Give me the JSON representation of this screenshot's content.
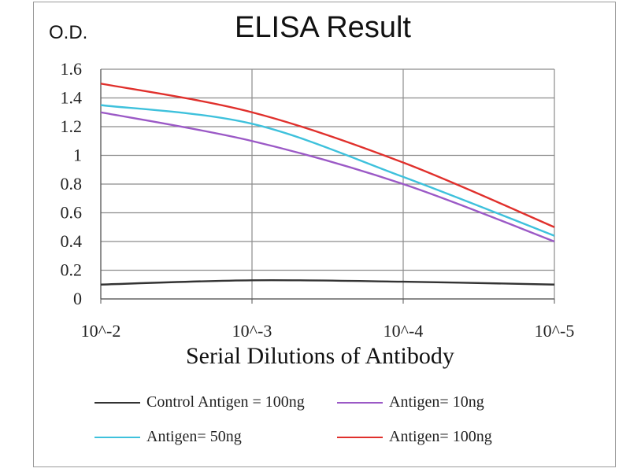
{
  "chart_data": {
    "type": "line",
    "title": "ELISA Result",
    "ylabel": "O.D.",
    "xlabel": "Serial Dilutions  of Antibody",
    "categories": [
      "10^-2",
      "10^-3",
      "10^-4",
      "10^-5"
    ],
    "ylim": [
      0,
      1.6
    ],
    "yticks": [
      "0",
      "0.2",
      "0.4",
      "0.6",
      "0.8",
      "1",
      "1.2",
      "1.4",
      "1.6"
    ],
    "grid": true,
    "legend_position": "bottom",
    "series": [
      {
        "name": "Control Antigen = 100ng",
        "color": "#333333",
        "values": [
          0.1,
          0.13,
          0.12,
          0.1
        ]
      },
      {
        "name": "Antigen= 10ng",
        "color": "#9b59c6",
        "values": [
          1.3,
          1.1,
          0.8,
          0.4
        ]
      },
      {
        "name": "Antigen= 50ng",
        "color": "#3ec1dc",
        "values": [
          1.35,
          1.22,
          0.85,
          0.44
        ]
      },
      {
        "name": "Antigen= 100ng",
        "color": "#e0302c",
        "values": [
          1.5,
          1.3,
          0.95,
          0.5
        ]
      }
    ]
  }
}
